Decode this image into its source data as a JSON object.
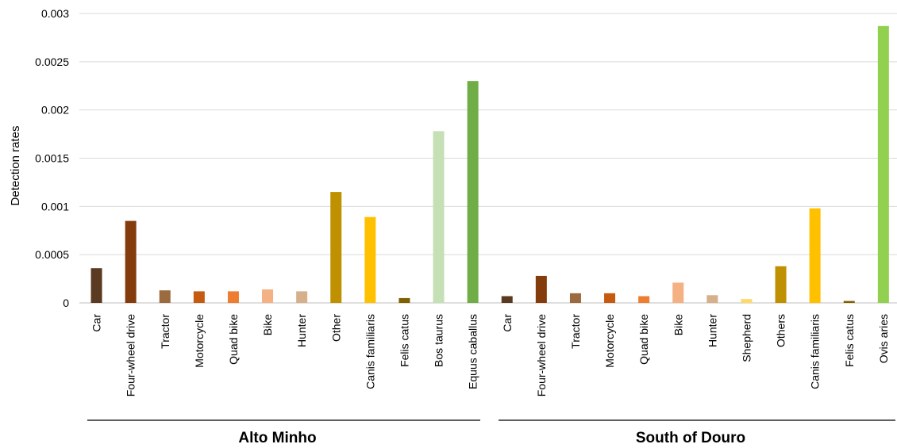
{
  "chart_data": {
    "type": "bar",
    "ylabel": "Detection rates",
    "ylim": [
      0,
      0.003
    ],
    "yticks": [
      "0",
      "0.0005",
      "0.001",
      "0.0015",
      "0.002",
      "0.0025",
      "0.003"
    ],
    "grid": true,
    "groups": [
      {
        "name": "Alto Minho",
        "categories": [
          "Car",
          "Four-wheel drive",
          "Tractor",
          "Motorcycle",
          "Quad bike",
          "Bike",
          "Hunter",
          "Other",
          "Canis familiaris",
          "Felis catus",
          "Bos taurus",
          "Equus caballus"
        ],
        "values": [
          0.00036,
          0.00085,
          0.00013,
          0.00012,
          0.00012,
          0.00014,
          0.00012,
          0.00115,
          0.00089,
          5e-05,
          0.00178,
          0.0023
        ],
        "colors": [
          "#5b3a22",
          "#843c0c",
          "#9c6a3f",
          "#c55a11",
          "#ed7d31",
          "#f4b183",
          "#d6b08a",
          "#bf9000",
          "#ffc000",
          "#7f6000",
          "#c5e0b4",
          "#70ad47"
        ]
      },
      {
        "name": "South of Douro",
        "categories": [
          "Car",
          "Four-wheel drive",
          "Tractor",
          "Motorcycle",
          "Quad bike",
          "Bike",
          "Hunter",
          "Shepherd",
          "Others",
          "Canis familiaris",
          "Felis catus",
          "Ovis aries"
        ],
        "values": [
          7e-05,
          0.00028,
          0.0001,
          0.0001,
          7e-05,
          0.00021,
          8e-05,
          4e-05,
          0.00038,
          0.00098,
          2e-05,
          0.00287
        ],
        "colors": [
          "#5b3a22",
          "#843c0c",
          "#9c6a3f",
          "#c55a11",
          "#ed7d31",
          "#f4b183",
          "#d6b08a",
          "#ffd966",
          "#bf9000",
          "#ffc000",
          "#7f6000",
          "#92d050"
        ]
      }
    ]
  }
}
